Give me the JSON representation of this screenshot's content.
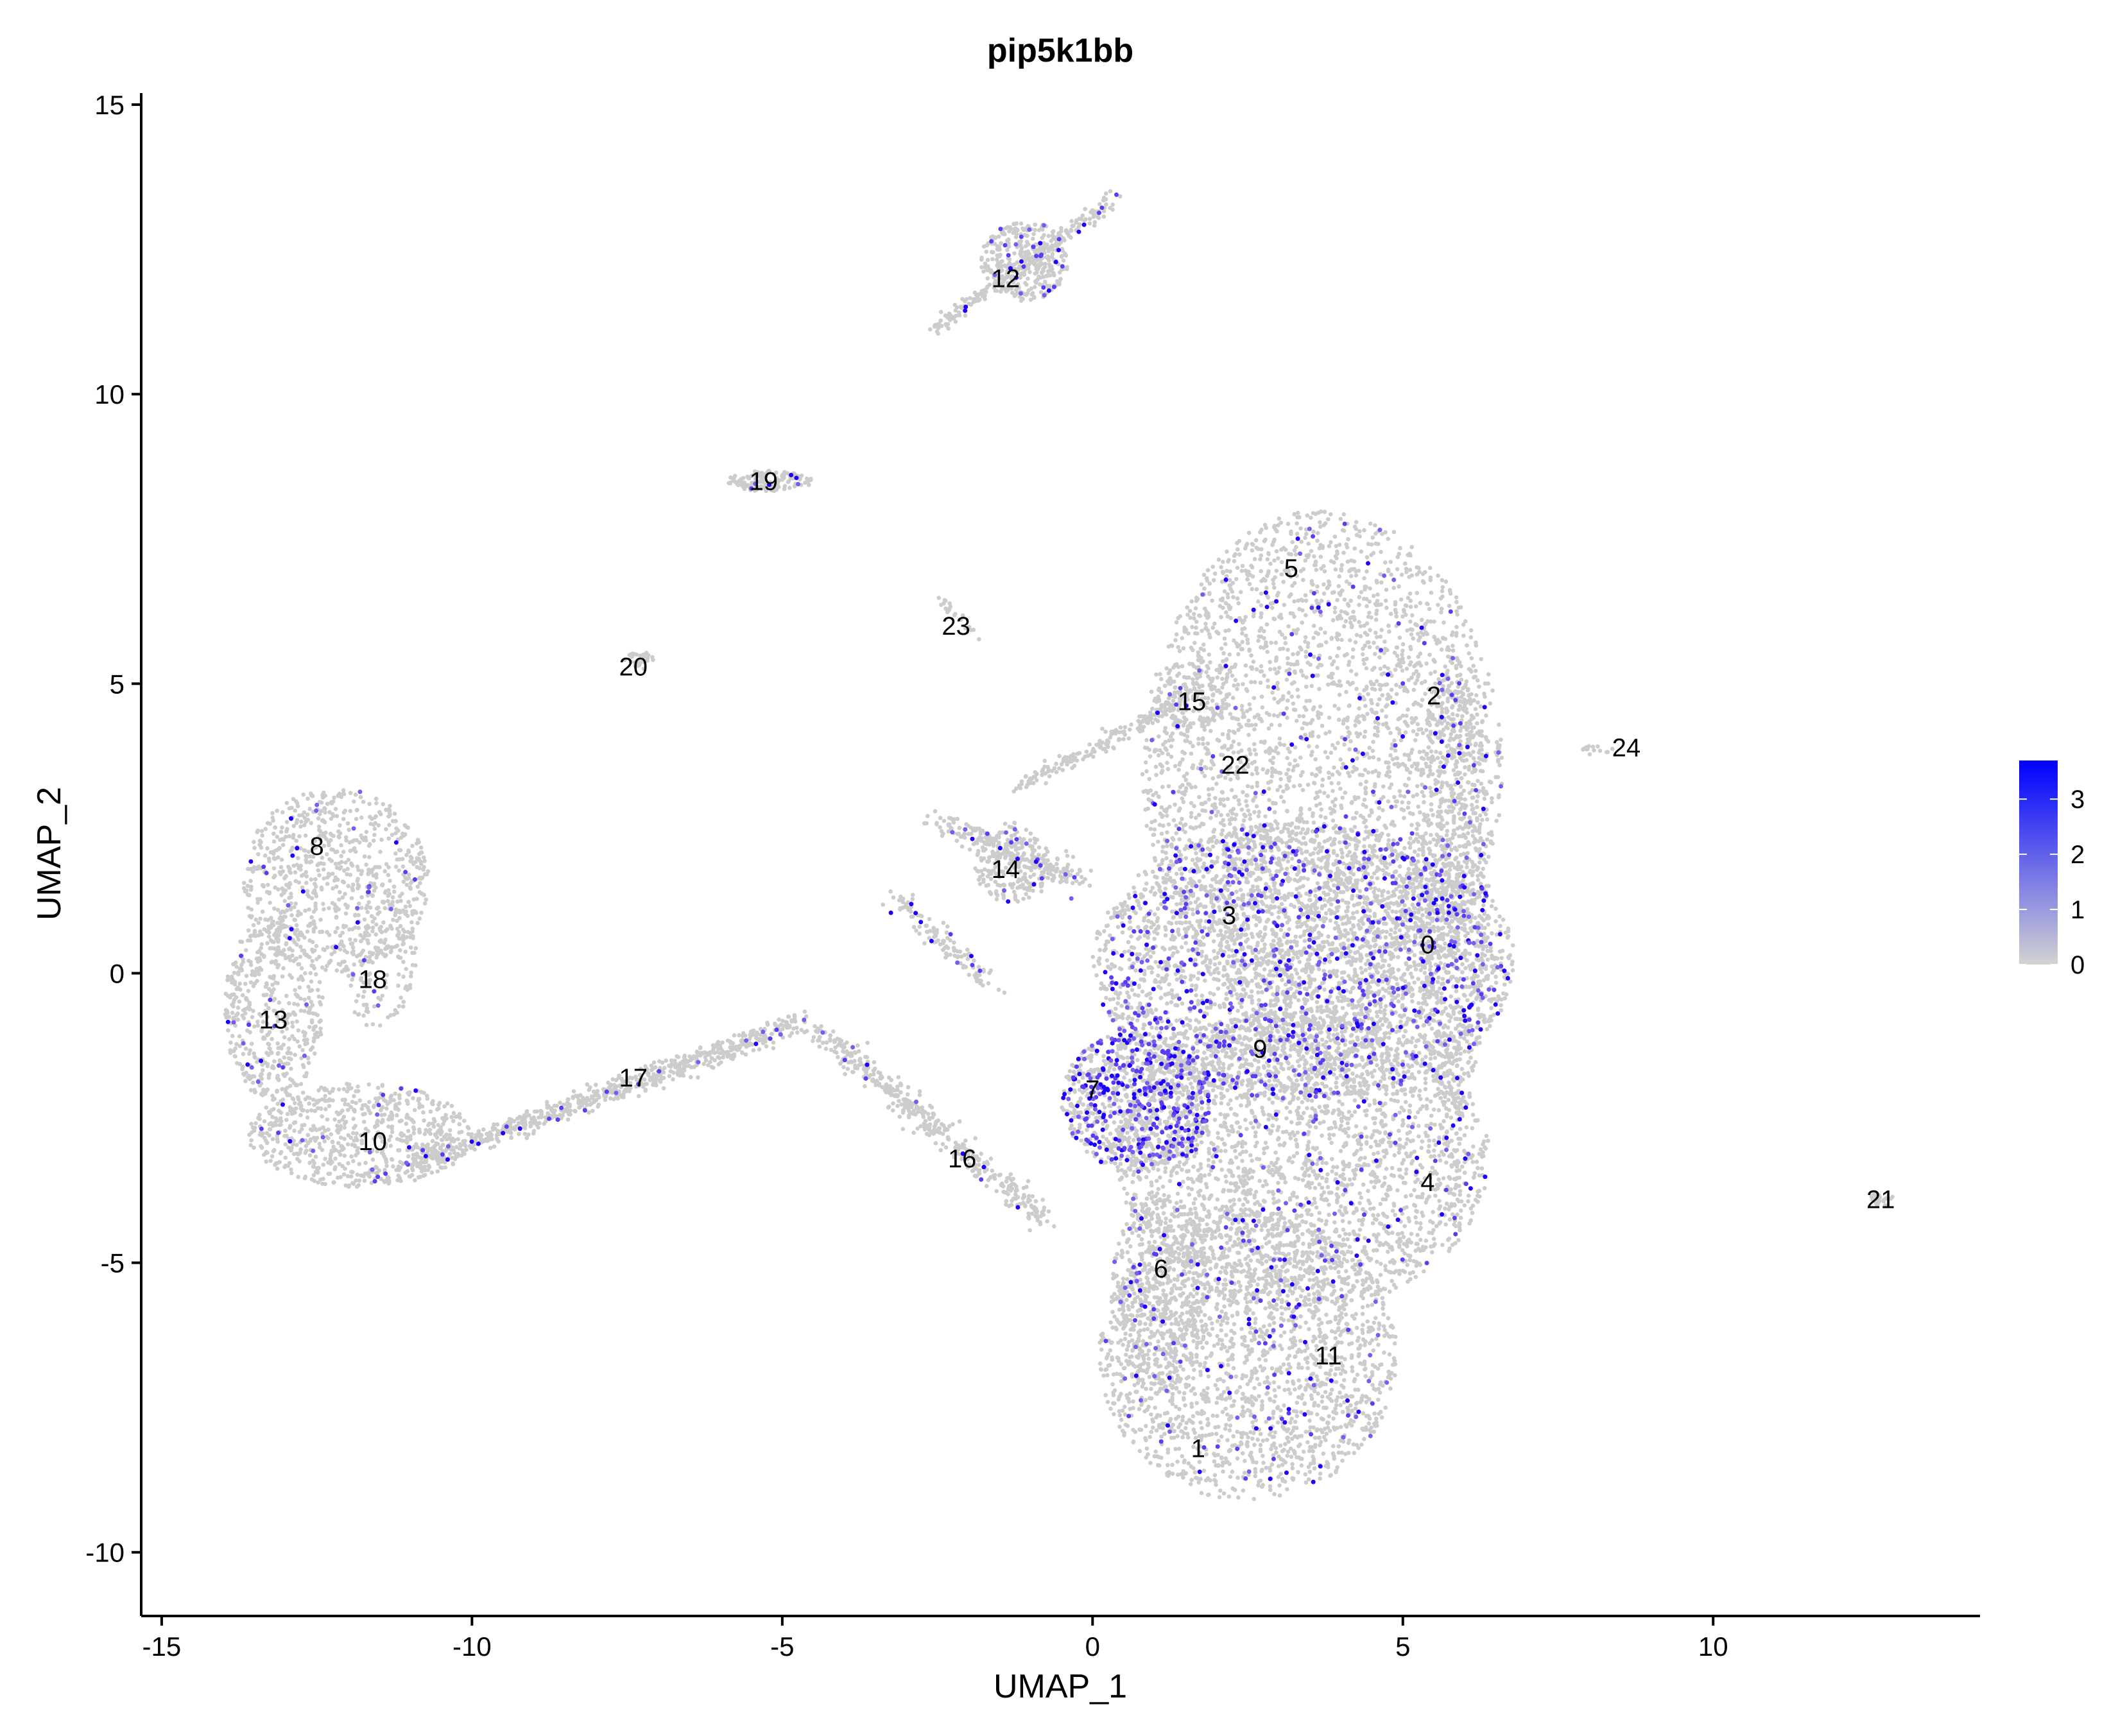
{
  "chart_data": {
    "type": "scatter",
    "title": "pip5k1bb",
    "xlabel": "UMAP_1",
    "ylabel": "UMAP_2",
    "xlim": [
      -15.33,
      14.3
    ],
    "ylim": [
      -11.1,
      15.2
    ],
    "x_ticks": [
      -15,
      -10,
      -5,
      0,
      5,
      10
    ],
    "x_tick_labels": [
      "-15",
      "-10",
      "-5",
      "0",
      "5",
      "10"
    ],
    "y_ticks": [
      -10,
      -5,
      0,
      5,
      10,
      15
    ],
    "y_tick_labels": [
      "-10",
      "-5",
      "0",
      "5",
      "10",
      "15"
    ],
    "grid": false,
    "legend": {
      "position": "right",
      "type": "colorbar",
      "min": 0,
      "max": 3.7,
      "ticks": [
        0,
        1,
        2,
        3
      ],
      "tick_labels": [
        "0",
        "1",
        "2",
        "3"
      ],
      "low_color": "#d3d3d3",
      "high_color": "#0000ff"
    },
    "point_color_low": "#cccccc",
    "point_color_high": "#1a00ff",
    "cluster_labels": [
      {
        "label": "0",
        "x": 5.4,
        "y": 0.5
      },
      {
        "label": "1",
        "x": 1.7,
        "y": -8.2
      },
      {
        "label": "2",
        "x": 5.5,
        "y": 4.8
      },
      {
        "label": "3",
        "x": 2.2,
        "y": 1.0
      },
      {
        "label": "4",
        "x": 5.4,
        "y": -3.6
      },
      {
        "label": "5",
        "x": 3.2,
        "y": 7.0
      },
      {
        "label": "6",
        "x": 1.1,
        "y": -5.1
      },
      {
        "label": "7",
        "x": 0.0,
        "y": -2.0
      },
      {
        "label": "8",
        "x": -12.5,
        "y": 2.2
      },
      {
        "label": "9",
        "x": 2.7,
        "y": -1.3
      },
      {
        "label": "10",
        "x": -11.6,
        "y": -2.9
      },
      {
        "label": "11",
        "x": 3.8,
        "y": -6.6
      },
      {
        "label": "12",
        "x": -1.4,
        "y": 12.0
      },
      {
        "label": "13",
        "x": -13.2,
        "y": -0.8
      },
      {
        "label": "14",
        "x": -1.4,
        "y": 1.8
      },
      {
        "label": "15",
        "x": 1.6,
        "y": 4.7
      },
      {
        "label": "16",
        "x": -2.1,
        "y": -3.2
      },
      {
        "label": "17",
        "x": -7.4,
        "y": -1.8
      },
      {
        "label": "18",
        "x": -11.6,
        "y": -0.1
      },
      {
        "label": "19",
        "x": -5.3,
        "y": 8.5
      },
      {
        "label": "20",
        "x": -7.4,
        "y": 5.3
      },
      {
        "label": "21",
        "x": 12.7,
        "y": -3.9
      },
      {
        "label": "22",
        "x": 2.3,
        "y": 3.6
      },
      {
        "label": "23",
        "x": -2.2,
        "y": 6.0
      },
      {
        "label": "24",
        "x": 8.6,
        "y": 3.9
      }
    ],
    "regions": [
      {
        "type": "ellipse",
        "cx": 3.7,
        "cy": 3.5,
        "rx": 2.9,
        "ry": 4.5,
        "n": 3400,
        "expr_rate": 0.04
      },
      {
        "type": "ellipse",
        "cx": 3.4,
        "cy": 0.2,
        "rx": 3.4,
        "ry": 2.4,
        "n": 3200,
        "expr_rate": 0.17
      },
      {
        "type": "ellipse",
        "cx": 3.4,
        "cy": -3.2,
        "rx": 3.0,
        "ry": 2.6,
        "n": 2600,
        "expr_rate": 0.05
      },
      {
        "type": "ellipse",
        "cx": 2.5,
        "cy": -6.6,
        "rx": 2.4,
        "ry": 2.5,
        "n": 2000,
        "expr_rate": 0.05
      },
      {
        "type": "ellipse",
        "cx": 0.7,
        "cy": -2.2,
        "rx": 1.2,
        "ry": 1.2,
        "n": 900,
        "expr_rate": 0.32
      },
      {
        "type": "ellipse",
        "cx": 1.1,
        "cy": -5.5,
        "rx": 0.8,
        "ry": 1.7,
        "n": 500,
        "expr_rate": 0.06
      },
      {
        "type": "ellipse",
        "cx": 5.8,
        "cy": 1.5,
        "rx": 0.6,
        "ry": 4.0,
        "n": 800,
        "expr_rate": 0.06
      },
      {
        "type": "ellipse",
        "cx": -12.2,
        "cy": 1.6,
        "rx": 1.5,
        "ry": 1.6,
        "n": 800,
        "expr_rate": 0.03
      },
      {
        "type": "ellipse",
        "cx": -13.2,
        "cy": -0.6,
        "rx": 0.8,
        "ry": 1.6,
        "n": 500,
        "expr_rate": 0.03
      },
      {
        "type": "ellipse",
        "cx": -11.8,
        "cy": -2.8,
        "rx": 1.8,
        "ry": 0.9,
        "n": 700,
        "expr_rate": 0.03
      },
      {
        "type": "ellipse",
        "cx": -11.5,
        "cy": 0.3,
        "rx": 0.6,
        "ry": 1.3,
        "n": 150,
        "expr_rate": 0.03
      },
      {
        "type": "ellipse",
        "cx": -1.1,
        "cy": 12.3,
        "rx": 0.7,
        "ry": 0.7,
        "n": 350,
        "expr_rate": 0.06
      },
      {
        "type": "ellipse",
        "cx": -5.2,
        "cy": 8.5,
        "rx": 0.7,
        "ry": 0.18,
        "n": 130,
        "expr_rate": 0.06
      },
      {
        "type": "ellipse",
        "cx": -7.3,
        "cy": 5.4,
        "rx": 0.25,
        "ry": 0.15,
        "n": 30,
        "expr_rate": 0.0
      },
      {
        "type": "ellipse",
        "cx": 12.7,
        "cy": -3.9,
        "rx": 0.2,
        "ry": 0.12,
        "n": 25,
        "expr_rate": 0.0
      },
      {
        "type": "ellipse",
        "cx": 8.1,
        "cy": 3.85,
        "rx": 0.3,
        "ry": 0.08,
        "n": 15,
        "expr_rate": 0.0
      },
      {
        "type": "ellipse",
        "cx": 1.6,
        "cy": 4.7,
        "rx": 0.6,
        "ry": 0.5,
        "n": 120,
        "expr_rate": 0.02
      },
      {
        "type": "ellipse",
        "cx": -1.3,
        "cy": 1.9,
        "rx": 0.6,
        "ry": 0.7,
        "n": 200,
        "expr_rate": 0.05
      },
      {
        "type": "line",
        "x0": -11.0,
        "y0": -3.3,
        "x1": -4.6,
        "y1": -0.8,
        "spread": 0.2,
        "n": 700,
        "expr_rate": 0.05
      },
      {
        "type": "line",
        "x0": -4.4,
        "y0": -1.0,
        "x1": -0.8,
        "y1": -4.2,
        "spread": 0.22,
        "n": 420,
        "expr_rate": 0.03
      },
      {
        "type": "line",
        "x0": -2.5,
        "y0": 2.6,
        "x1": -0.2,
        "y1": 1.6,
        "spread": 0.25,
        "n": 220,
        "expr_rate": 0.05
      },
      {
        "type": "line",
        "x0": -3.2,
        "y0": 1.3,
        "x1": -1.6,
        "y1": -0.2,
        "spread": 0.2,
        "n": 120,
        "expr_rate": 0.05
      },
      {
        "type": "line",
        "x0": -1.2,
        "y0": 3.2,
        "x1": 1.6,
        "y1": 4.8,
        "spread": 0.15,
        "n": 180,
        "expr_rate": 0.0
      },
      {
        "type": "line",
        "x0": -2.5,
        "y0": 6.5,
        "x1": -1.8,
        "y1": 5.8,
        "spread": 0.08,
        "n": 20,
        "expr_rate": 0.0
      },
      {
        "type": "line",
        "x0": -2.6,
        "y0": 11.1,
        "x1": 0.4,
        "y1": 13.4,
        "spread": 0.15,
        "n": 220,
        "expr_rate": 0.06
      }
    ]
  }
}
